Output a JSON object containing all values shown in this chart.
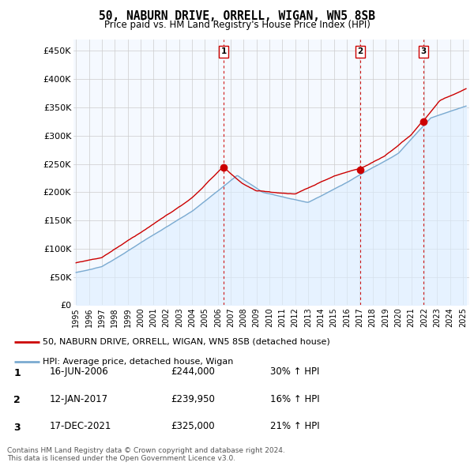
{
  "title": "50, NABURN DRIVE, ORRELL, WIGAN, WN5 8SB",
  "subtitle": "Price paid vs. HM Land Registry's House Price Index (HPI)",
  "ylabel_ticks": [
    "£0",
    "£50K",
    "£100K",
    "£150K",
    "£200K",
    "£250K",
    "£300K",
    "£350K",
    "£400K",
    "£450K"
  ],
  "ytick_values": [
    0,
    50000,
    100000,
    150000,
    200000,
    250000,
    300000,
    350000,
    400000,
    450000
  ],
  "ylim": [
    0,
    470000
  ],
  "xlim_start": 1994.8,
  "xlim_end": 2025.5,
  "sale_color": "#cc0000",
  "hpi_color": "#7aaad0",
  "hpi_fill_color": "#ddeeff",
  "dashed_line_color": "#cc0000",
  "transactions": [
    {
      "date_dec": 2006.45,
      "price": 244000,
      "label": "1"
    },
    {
      "date_dec": 2017.04,
      "price": 239950,
      "label": "2"
    },
    {
      "date_dec": 2021.96,
      "price": 325000,
      "label": "3"
    }
  ],
  "table_rows": [
    {
      "num": "1",
      "date": "16-JUN-2006",
      "price": "£244,000",
      "change": "30% ↑ HPI"
    },
    {
      "num": "2",
      "date": "12-JAN-2017",
      "price": "£239,950",
      "change": "16% ↑ HPI"
    },
    {
      "num": "3",
      "date": "17-DEC-2021",
      "price": "£325,000",
      "change": "21% ↑ HPI"
    }
  ],
  "legend_line1": "50, NABURN DRIVE, ORRELL, WIGAN, WN5 8SB (detached house)",
  "legend_line2": "HPI: Average price, detached house, Wigan",
  "footnote": "Contains HM Land Registry data © Crown copyright and database right 2024.\nThis data is licensed under the Open Government Licence v3.0.",
  "background_color": "#ffffff",
  "grid_color": "#cccccc",
  "chart_bg_color": "#f5f9ff"
}
